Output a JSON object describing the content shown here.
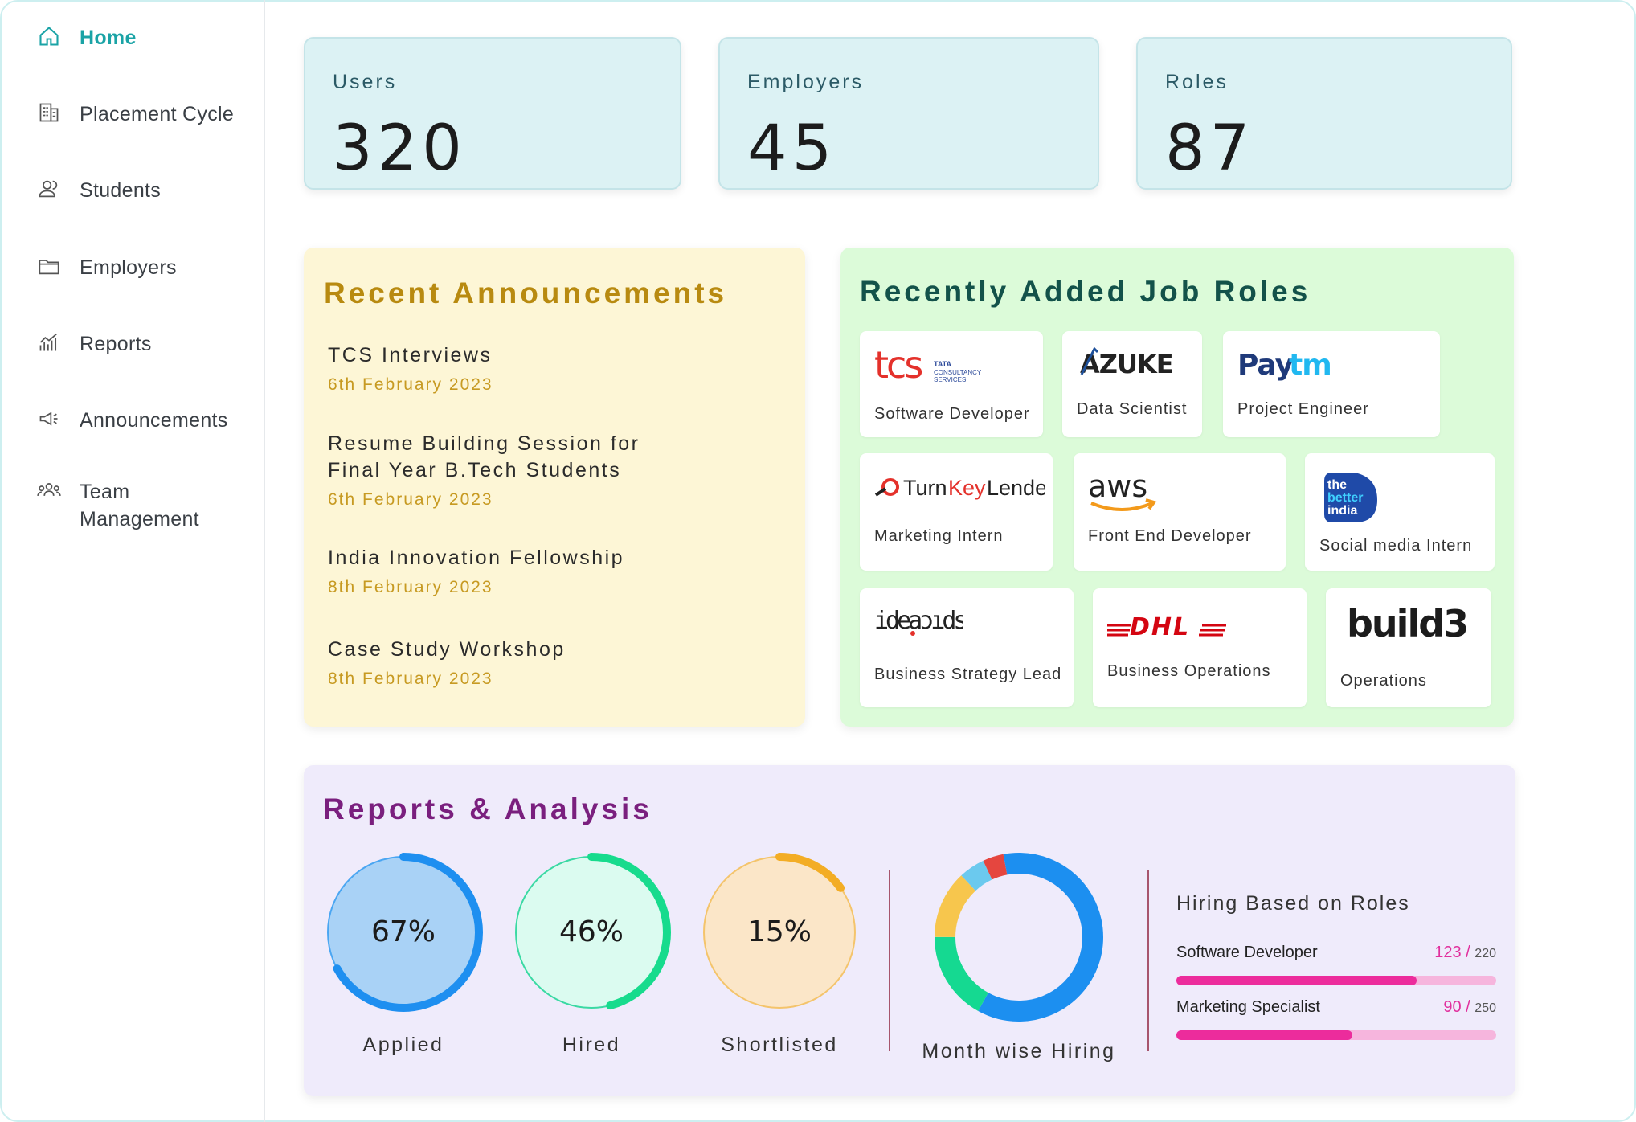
{
  "sidebar": {
    "items": [
      {
        "label": "Home",
        "icon": "home-icon",
        "active": true
      },
      {
        "label": "Placement Cycle",
        "icon": "building-icon"
      },
      {
        "label": "Students",
        "icon": "users-icon"
      },
      {
        "label": "Employers",
        "icon": "folder-icon"
      },
      {
        "label": "Reports",
        "icon": "chart-icon"
      },
      {
        "label": "Announcements",
        "icon": "megaphone-icon"
      },
      {
        "label": "Team Management",
        "icon": "team-icon"
      }
    ]
  },
  "stats": [
    {
      "label": "Users",
      "value": "320"
    },
    {
      "label": "Employers",
      "value": "45"
    },
    {
      "label": "Roles",
      "value": "87"
    }
  ],
  "announcements": {
    "title": "Recent Announcements",
    "items": [
      {
        "title": "TCS Interviews",
        "date": "6th February 2023"
      },
      {
        "title": "Resume Building Session for Final Year B.Tech Students",
        "date": "6th February 2023"
      },
      {
        "title": "India Innovation Fellowship",
        "date": "8th February 2023"
      },
      {
        "title": "Case Study Workshop",
        "date": "8th February 2023"
      }
    ]
  },
  "job_roles": {
    "title": "Recently Added Job Roles",
    "items": [
      {
        "company_logo_text": "tcs TATA CONSULTANCY SERVICES",
        "role": "Software Developer"
      },
      {
        "company_logo_text": "AZUKE",
        "role": "Data Scientist"
      },
      {
        "company_logo_text": "Paytm",
        "role": "Project Engineer"
      },
      {
        "company_logo_text": "TurnKey Lender",
        "role": "Marketing Intern"
      },
      {
        "company_logo_text": "aws",
        "role": "Front End Developer"
      },
      {
        "company_logo_text": "the better india",
        "role": "Social media Intern"
      },
      {
        "company_logo_text": "ideaspids",
        "role": "Business Strategy Lead"
      },
      {
        "company_logo_text": "DHL",
        "role": "Business Operations"
      },
      {
        "company_logo_text": "build3",
        "role": "Operations"
      }
    ]
  },
  "reports": {
    "title": "Reports & Analysis",
    "rings": [
      {
        "label": "Applied",
        "percent_text": "67%",
        "percent": 67,
        "fill": "#a9d2f6",
        "stroke": "#1e8ff0",
        "track": "#4aa6f2"
      },
      {
        "label": "Hired",
        "percent_text": "46%",
        "percent": 46,
        "fill": "#dbfbf0",
        "stroke": "#17db8d",
        "track": "#3ad9a3"
      },
      {
        "label": "Shortlisted",
        "percent_text": "15%",
        "percent": 15,
        "fill": "#fbe6c8",
        "stroke": "#f3ad25",
        "track": "#f4c46b"
      }
    ],
    "donut": {
      "label": "Month wise Hiring",
      "segments": [
        {
          "color": "#1c8ff0",
          "share": 0.58
        },
        {
          "color": "#15d991",
          "share": 0.17
        },
        {
          "color": "#f7c64d",
          "share": 0.13
        },
        {
          "color": "#6bc9ee",
          "share": 0.05
        },
        {
          "color": "#e5463f",
          "share": 0.04
        },
        {
          "color": "#1c8ff0",
          "share": 0.03
        }
      ]
    },
    "hiring_by_roles": {
      "title": "Hiring Based on Roles",
      "rows": [
        {
          "name": "Software Developer",
          "value": "123",
          "total": "220",
          "fraction": 0.75
        },
        {
          "name": "Marketing Specialist",
          "value": "90",
          "total": "250",
          "fraction": 0.55
        }
      ]
    }
  },
  "colors": {
    "accent": "#1aa3a6",
    "announcement_title": "#b88a10",
    "jobs_title": "#13524a",
    "reports_title": "#7a1f7e"
  }
}
